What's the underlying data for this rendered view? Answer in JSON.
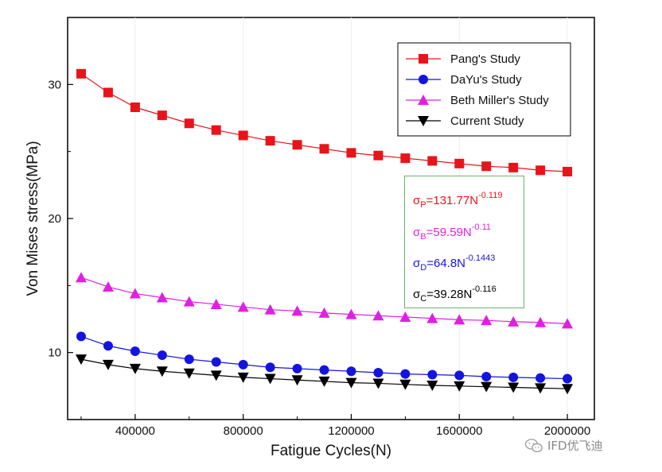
{
  "chart_data": {
    "type": "line",
    "title": "",
    "xlabel": "Fatigue Cycles(N)",
    "ylabel": "Von Mises stress(MPa)",
    "xlim": [
      150000,
      2100000
    ],
    "ylim": [
      5,
      35
    ],
    "xticks": [
      400000,
      800000,
      1200000,
      1600000,
      2000000
    ],
    "xtick_labels": [
      "400000",
      "800000",
      "1200000",
      "1600000",
      "2000000"
    ],
    "yticks": [
      10,
      20,
      30
    ],
    "ytick_labels": [
      "10",
      "20",
      "30"
    ],
    "x": [
      200000,
      300000,
      400000,
      500000,
      600000,
      700000,
      800000,
      900000,
      1000000,
      1100000,
      1200000,
      1300000,
      1400000,
      1500000,
      1600000,
      1700000,
      1800000,
      1900000,
      2000000
    ],
    "series": [
      {
        "name": "Pang's Study",
        "color": "#e8141a",
        "marker": "square",
        "values": [
          30.8,
          29.4,
          28.3,
          27.7,
          27.1,
          26.6,
          26.2,
          25.8,
          25.5,
          25.2,
          24.9,
          24.7,
          24.5,
          24.3,
          24.1,
          23.9,
          23.8,
          23.6,
          23.5
        ]
      },
      {
        "name": "DaYu's Study",
        "color": "#1414e0",
        "marker": "circle",
        "values": [
          11.2,
          10.5,
          10.1,
          9.8,
          9.5,
          9.3,
          9.1,
          8.9,
          8.8,
          8.7,
          8.6,
          8.5,
          8.4,
          8.35,
          8.3,
          8.2,
          8.15,
          8.1,
          8.05
        ]
      },
      {
        "name": "Beth Miller's Study",
        "color": "#e020e0",
        "marker": "triangle-up",
        "values": [
          15.6,
          14.9,
          14.4,
          14.1,
          13.8,
          13.6,
          13.4,
          13.2,
          13.1,
          12.95,
          12.85,
          12.75,
          12.65,
          12.55,
          12.45,
          12.4,
          12.3,
          12.25,
          12.15
        ]
      },
      {
        "name": "Current Study",
        "color": "#000000",
        "marker": "triangle-down",
        "values": [
          9.5,
          9.1,
          8.8,
          8.6,
          8.45,
          8.3,
          8.15,
          8.05,
          7.95,
          7.85,
          7.75,
          7.7,
          7.62,
          7.55,
          7.5,
          7.45,
          7.4,
          7.35,
          7.3
        ]
      }
    ],
    "legend_position": "top-right",
    "annotations": [
      {
        "text": "σP=131.77N-0.119",
        "base": "σ",
        "sub": "P",
        "mid": "=131.77N",
        "sup": "-0.119",
        "color": "#e8141a"
      },
      {
        "text": "σB=59.59N-0.11",
        "base": "σ",
        "sub": "B",
        "mid": "=59.59N",
        "sup": "-0.11",
        "color": "#e020e0"
      },
      {
        "text": "σD=64.8N-0.1443",
        "base": "σ",
        "sub": "D",
        "mid": "=64.8N",
        "sup": "-0.1443",
        "color": "#1414e0"
      },
      {
        "text": "σC=39.28N-0.116",
        "base": "σ",
        "sub": "C",
        "mid": "=39.28N",
        "sup": "-0.116",
        "color": "#000000"
      }
    ]
  },
  "watermark": {
    "text": "IFD优飞迪",
    "icon": "wechat-icon"
  }
}
